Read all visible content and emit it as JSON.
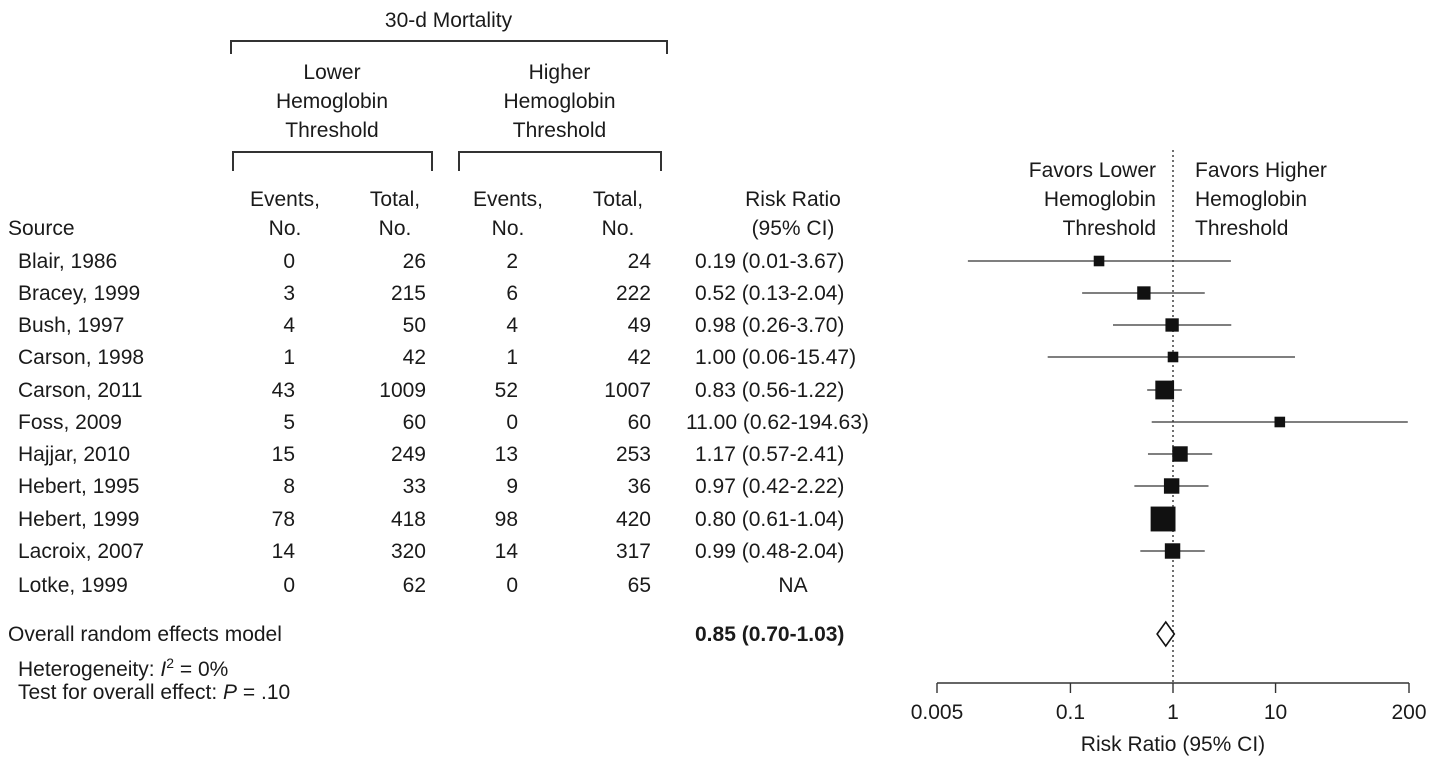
{
  "header": {
    "group_title": "30-d Mortality",
    "lower_group": [
      "Lower",
      "Hemoglobin",
      "Threshold"
    ],
    "higher_group": [
      "Higher",
      "Hemoglobin",
      "Threshold"
    ],
    "col_events": [
      "Events,",
      "No."
    ],
    "col_total": [
      "Total,",
      "No."
    ],
    "col_rr": [
      "Risk Ratio",
      "(95% CI)"
    ],
    "col_source": "Source",
    "favors_lower": [
      "Favors Lower",
      "Hemoglobin",
      "Threshold"
    ],
    "favors_higher": [
      "Favors Higher",
      "Hemoglobin",
      "Threshold"
    ]
  },
  "rows": [
    {
      "source": "Blair, 1986",
      "le": "0",
      "lt": "26",
      "he": "2",
      "ht": "24",
      "rr_text": "0.19 (0.01-3.67)"
    },
    {
      "source": "Bracey, 1999",
      "le": "3",
      "lt": "215",
      "he": "6",
      "ht": "222",
      "rr_text": "0.52 (0.13-2.04)"
    },
    {
      "source": "Bush, 1997",
      "le": "4",
      "lt": "50",
      "he": "4",
      "ht": "49",
      "rr_text": "0.98 (0.26-3.70)"
    },
    {
      "source": "Carson, 1998",
      "le": "1",
      "lt": "42",
      "he": "1",
      "ht": "42",
      "rr_text": "1.00 (0.06-15.47)"
    },
    {
      "source": "Carson, 2011",
      "le": "43",
      "lt": "1009",
      "he": "52",
      "ht": "1007",
      "rr_text": "0.83 (0.56-1.22)"
    },
    {
      "source": "Foss, 2009",
      "le": "5",
      "lt": "60",
      "he": "0",
      "ht": "60",
      "rr_text": "11.00 (0.62-194.63)"
    },
    {
      "source": "Hajjar, 2010",
      "le": "15",
      "lt": "249",
      "he": "13",
      "ht": "253",
      "rr_text": "1.17 (0.57-2.41)"
    },
    {
      "source": "Hebert, 1995",
      "le": "8",
      "lt": "33",
      "he": "9",
      "ht": "36",
      "rr_text": "0.97 (0.42-2.22)"
    },
    {
      "source": "Hebert, 1999",
      "le": "78",
      "lt": "418",
      "he": "98",
      "ht": "420",
      "rr_text": "0.80 (0.61-1.04)"
    },
    {
      "source": "Lacroix, 2007",
      "le": "14",
      "lt": "320",
      "he": "14",
      "ht": "317",
      "rr_text": "0.99 (0.48-2.04)"
    },
    {
      "source": "Lotke, 1999",
      "le": "0",
      "lt": "62",
      "he": "0",
      "ht": "65",
      "rr_text": "NA"
    }
  ],
  "overall": {
    "label": "Overall random effects model",
    "rr_text": "0.85 (0.70-1.03)",
    "heterogeneity_prefix": "Heterogeneity: ",
    "heterogeneity_i": "I",
    "heterogeneity_sup": "2",
    "heterogeneity_value": " = 0%",
    "test_prefix": "Test for overall effect: ",
    "test_p": "P",
    "test_value": " = .10"
  },
  "chart_data": {
    "type": "forest",
    "xlabel": "Risk Ratio (95% CI)",
    "x_scale": "log",
    "xlim": [
      0.005,
      200
    ],
    "ticks": [
      0.005,
      0.1,
      1,
      10,
      200
    ],
    "tick_labels": [
      "0.005",
      "0.1",
      "1",
      "10",
      "200"
    ],
    "reference_line": 1,
    "studies": [
      {
        "name": "Blair, 1986",
        "rr": 0.19,
        "lo": 0.01,
        "hi": 3.67,
        "weight": 1
      },
      {
        "name": "Bracey, 1999",
        "rr": 0.52,
        "lo": 0.13,
        "hi": 2.04,
        "weight": 2
      },
      {
        "name": "Bush, 1997",
        "rr": 0.98,
        "lo": 0.26,
        "hi": 3.7,
        "weight": 2
      },
      {
        "name": "Carson, 1998",
        "rr": 1.0,
        "lo": 0.06,
        "hi": 15.47,
        "weight": 1
      },
      {
        "name": "Carson, 2011",
        "rr": 0.83,
        "lo": 0.56,
        "hi": 1.22,
        "weight": 5
      },
      {
        "name": "Foss, 2009",
        "rr": 11.0,
        "lo": 0.62,
        "hi": 194.63,
        "weight": 1
      },
      {
        "name": "Hajjar, 2010",
        "rr": 1.17,
        "lo": 0.57,
        "hi": 2.41,
        "weight": 3
      },
      {
        "name": "Hebert, 1995",
        "rr": 0.97,
        "lo": 0.42,
        "hi": 2.22,
        "weight": 3
      },
      {
        "name": "Hebert, 1999",
        "rr": 0.8,
        "lo": 0.61,
        "hi": 1.04,
        "weight": 10
      },
      {
        "name": "Lacroix, 2007",
        "rr": 0.99,
        "lo": 0.48,
        "hi": 2.04,
        "weight": 3
      }
    ],
    "overall": {
      "rr": 0.85,
      "lo": 0.7,
      "hi": 1.03
    }
  }
}
